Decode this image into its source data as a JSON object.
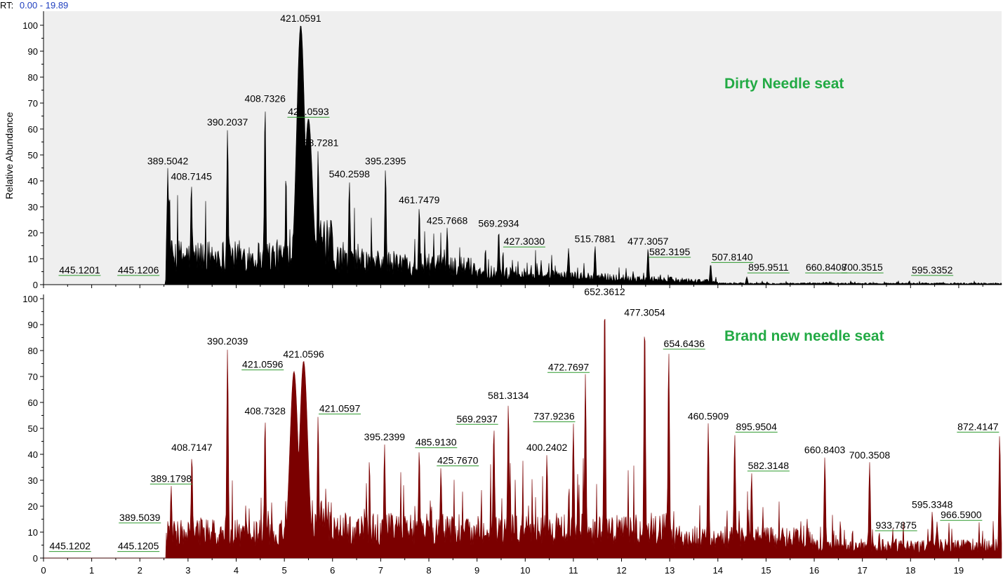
{
  "header": {
    "rt_prefix": "RT:",
    "rt_range": "0.00 - 19.89"
  },
  "colors": {
    "top_fill": "#000000",
    "bottom_fill": "#7b0000",
    "top_bg": "#efefef",
    "title": "#22aa44",
    "rt_value": "#1f3fbf",
    "leader": "#2e9a2e"
  },
  "chart_data": [
    {
      "type": "area",
      "title": "Dirty Needle seat",
      "xlabel": "",
      "ylabel": "Relative Abundance",
      "xlim": [
        0,
        19.89
      ],
      "ylim": [
        0,
        100
      ],
      "x_ticks": [
        0,
        1,
        2,
        3,
        4,
        5,
        6,
        7,
        8,
        9,
        10,
        11,
        12,
        13,
        14,
        15,
        16,
        17,
        18,
        19
      ],
      "y_ticks": [
        0,
        10,
        20,
        30,
        40,
        50,
        60,
        70,
        80,
        90,
        100
      ],
      "peaks": [
        {
          "rt": 2.58,
          "abundance": 45,
          "label": "389.5042"
        },
        {
          "rt": 3.07,
          "abundance": 39,
          "label": "408.7145"
        },
        {
          "rt": 3.82,
          "abundance": 60,
          "label": "390.2037"
        },
        {
          "rt": 4.6,
          "abundance": 69,
          "label": "408.7326"
        },
        {
          "rt": 5.34,
          "abundance": 100,
          "label": "421.0591"
        },
        {
          "rt": 5.5,
          "abundance": 64,
          "label": "421.0593",
          "ly": 64
        },
        {
          "rt": 5.7,
          "abundance": 52,
          "label": "488.7281"
        },
        {
          "rt": 6.35,
          "abundance": 40,
          "label": "540.2598"
        },
        {
          "rt": 7.1,
          "abundance": 45,
          "label": "395.2395"
        },
        {
          "rt": 7.8,
          "abundance": 30,
          "label": "461.7479"
        },
        {
          "rt": 8.38,
          "abundance": 22,
          "label": "425.7668"
        },
        {
          "rt": 9.45,
          "abundance": 21,
          "label": "569.2934"
        },
        {
          "rt": 10.9,
          "abundance": 14,
          "label": "427.3030",
          "lx": 9.98
        },
        {
          "rt": 11.45,
          "abundance": 15,
          "label": "515.7881"
        },
        {
          "rt": 12.55,
          "abundance": 14,
          "label": "477.3057"
        },
        {
          "rt": 12.55,
          "abundance": 10,
          "label": "582.3195",
          "lx": 13.0,
          "ly": 10
        },
        {
          "rt": 13.85,
          "abundance": 8,
          "label": "507.8140",
          "lx": 14.3,
          "ly": 8
        },
        {
          "rt": 14.6,
          "abundance": 3,
          "label": "895.9511",
          "lx": 15.05,
          "ly": 4
        },
        {
          "rt": 16.25,
          "abundance": 1,
          "label": "660.8408",
          "ly": 4
        },
        {
          "rt": 17.0,
          "abundance": 0.5,
          "label": "700.3515",
          "ly": 4
        },
        {
          "rt": 18.45,
          "abundance": 0.5,
          "label": "595.3352",
          "ly": 3
        },
        {
          "rt": 1.35,
          "abundance": 0,
          "label": "445.1201",
          "lx": 0.75,
          "ly": 3
        },
        {
          "rt": 1.35,
          "abundance": 0,
          "label": "445.1206",
          "lx": 1.97,
          "ly": 3
        }
      ]
    },
    {
      "type": "area",
      "title": "Brand new needle seat",
      "xlabel": "",
      "ylabel": "",
      "xlim": [
        0,
        19.89
      ],
      "ylim": [
        0,
        100
      ],
      "x_ticks": [
        0,
        1,
        2,
        3,
        4,
        5,
        6,
        7,
        8,
        9,
        10,
        11,
        12,
        13,
        14,
        15,
        16,
        17,
        18,
        19
      ],
      "y_ticks": [
        0,
        10,
        20,
        30,
        40,
        50,
        60,
        70,
        80,
        90,
        100
      ],
      "peaks": [
        {
          "rt": 2.65,
          "abundance": 28,
          "label": "389.1798",
          "ly": 28
        },
        {
          "rt": 2.65,
          "abundance": 13,
          "label": "389.5039",
          "lx": 2.0,
          "ly": 13
        },
        {
          "rt": 3.08,
          "abundance": 40,
          "label": "408.7147"
        },
        {
          "rt": 3.82,
          "abundance": 81,
          "label": "390.2039"
        },
        {
          "rt": 4.6,
          "abundance": 54,
          "label": "408.7328"
        },
        {
          "rt": 5.2,
          "abundance": 72,
          "label": "421.0596",
          "lx": 4.55,
          "ly": 72
        },
        {
          "rt": 5.4,
          "abundance": 76,
          "label": "421.0596"
        },
        {
          "rt": 5.7,
          "abundance": 55,
          "label": "421.0597",
          "lx": 6.15,
          "ly": 55
        },
        {
          "rt": 7.08,
          "abundance": 44,
          "label": "395.2399"
        },
        {
          "rt": 7.8,
          "abundance": 42,
          "label": "485.9130",
          "lx": 8.15,
          "ly": 42
        },
        {
          "rt": 8.25,
          "abundance": 35,
          "label": "425.7670",
          "lx": 8.6,
          "ly": 35
        },
        {
          "rt": 9.35,
          "abundance": 51,
          "label": "569.2937",
          "lx": 9.0,
          "ly": 51
        },
        {
          "rt": 9.65,
          "abundance": 60,
          "label": "581.3134"
        },
        {
          "rt": 10.45,
          "abundance": 40,
          "label": "400.2402"
        },
        {
          "rt": 11.0,
          "abundance": 52,
          "label": "737.9236",
          "lx": 10.6,
          "ly": 52
        },
        {
          "rt": 11.25,
          "abundance": 71,
          "label": "472.7697",
          "lx": 10.9,
          "ly": 71
        },
        {
          "rt": 11.65,
          "abundance": 100,
          "label": "652.3612"
        },
        {
          "rt": 12.48,
          "abundance": 92,
          "label": "477.3054"
        },
        {
          "rt": 12.98,
          "abundance": 80,
          "label": "654.6436",
          "lx": 13.3,
          "ly": 80
        },
        {
          "rt": 13.8,
          "abundance": 52,
          "label": "460.5909"
        },
        {
          "rt": 14.35,
          "abundance": 48,
          "label": "895.9504",
          "lx": 14.8,
          "ly": 48
        },
        {
          "rt": 14.7,
          "abundance": 33,
          "label": "582.3148",
          "lx": 15.05,
          "ly": 33
        },
        {
          "rt": 16.22,
          "abundance": 39,
          "label": "660.8403"
        },
        {
          "rt": 17.15,
          "abundance": 37,
          "label": "700.3508"
        },
        {
          "rt": 17.35,
          "abundance": 10,
          "label": "933.7875",
          "lx": 17.7,
          "ly": 10
        },
        {
          "rt": 18.45,
          "abundance": 18,
          "label": "595.3348"
        },
        {
          "rt": 18.55,
          "abundance": 14,
          "label": "966.5900",
          "lx": 19.05,
          "ly": 14
        },
        {
          "rt": 19.85,
          "abundance": 48,
          "label": "872.4147",
          "lx": 19.4,
          "ly": 48
        },
        {
          "rt": 1.3,
          "abundance": 0,
          "label": "445.1202",
          "lx": 0.55,
          "ly": 2
        },
        {
          "rt": 1.3,
          "abundance": 0,
          "label": "445.1205",
          "lx": 1.97,
          "ly": 2
        }
      ]
    }
  ]
}
